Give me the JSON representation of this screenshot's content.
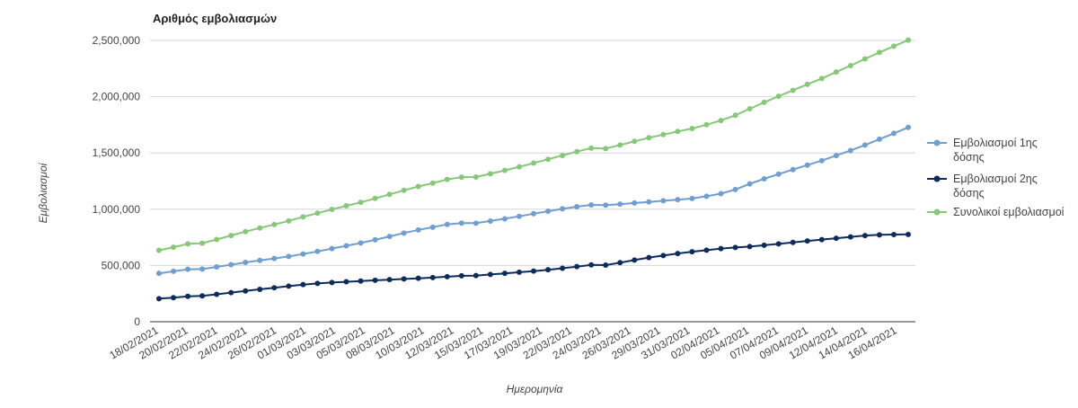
{
  "chart_data": {
    "type": "line",
    "title": "Αριθμός εμβολιασμών",
    "xlabel": "Ημερομηνία",
    "ylabel": "Εμβολιασμοί",
    "ylim": [
      0,
      2500000
    ],
    "yticks": [
      "0",
      "500,000",
      "1,000,000",
      "1,500,000",
      "2,000,000",
      "2,500,000"
    ],
    "grid": true,
    "legend_position": "right",
    "x_tick_labels": [
      "18/02/2021",
      "20/02/2021",
      "22/02/2021",
      "24/02/2021",
      "26/02/2021",
      "01/03/2021",
      "03/03/2021",
      "05/03/2021",
      "08/03/2021",
      "10/03/2021",
      "12/03/2021",
      "15/03/2021",
      "17/03/2021",
      "19/03/2021",
      "22/03/2021",
      "24/03/2021",
      "26/03/2021",
      "29/03/2021",
      "31/03/2021",
      "02/04/2021",
      "05/04/2021",
      "07/04/2021",
      "09/04/2021",
      "12/04/2021",
      "14/04/2021",
      "16/04/2021"
    ],
    "series": [
      {
        "name": "Εμβολιασμοί 1ης δόσης",
        "legend_lines": [
          "Εμβολιασμοί 1ης",
          "δόσης"
        ],
        "color": "#6f9fd1",
        "values": [
          430000,
          448000,
          466000,
          468000,
          487000,
          507000,
          527000,
          545000,
          562000,
          580000,
          602000,
          625000,
          650000,
          675000,
          700000,
          728000,
          758000,
          788000,
          816000,
          840000,
          865000,
          877000,
          876000,
          895000,
          915000,
          937000,
          960000,
          982000,
          1003000,
          1022000,
          1038000,
          1036000,
          1045000,
          1055000,
          1065000,
          1075000,
          1085000,
          1095000,
          1115000,
          1138000,
          1175000,
          1225000,
          1270000,
          1312000,
          1352000,
          1392000,
          1432000,
          1477000,
          1522000,
          1570000,
          1622000,
          1674000,
          1727000
        ]
      },
      {
        "name": "Εμβολιασμοί 2ης δόσης",
        "legend_lines": [
          "Εμβολιασμοί 2ης",
          "δόσης"
        ],
        "color": "#0d2c5c",
        "values": [
          205000,
          214000,
          226000,
          230000,
          244000,
          259000,
          274000,
          288000,
          302000,
          316000,
          330000,
          340000,
          348000,
          355000,
          361000,
          368000,
          374000,
          380000,
          386000,
          392000,
          400000,
          408000,
          410000,
          420000,
          430000,
          440000,
          450000,
          462000,
          475000,
          490000,
          505000,
          503000,
          525000,
          548000,
          570000,
          588000,
          606000,
          622000,
          636000,
          650000,
          660000,
          668000,
          680000,
          692000,
          705000,
          718000,
          730000,
          742000,
          754000,
          766000,
          772000,
          775000,
          776000
        ]
      },
      {
        "name": "Συνολικοί εμβολιασμοί",
        "legend_lines": [
          "Συνολικοί εμβολιασμοί"
        ],
        "color": "#86c876",
        "values": [
          635000,
          662000,
          692000,
          698000,
          731000,
          766000,
          801000,
          833000,
          864000,
          896000,
          932000,
          965000,
          998000,
          1030000,
          1061000,
          1096000,
          1132000,
          1168000,
          1202000,
          1232000,
          1265000,
          1285000,
          1286000,
          1315000,
          1345000,
          1377000,
          1410000,
          1444000,
          1478000,
          1512000,
          1543000,
          1539000,
          1570000,
          1603000,
          1635000,
          1663000,
          1691000,
          1717000,
          1751000,
          1788000,
          1835000,
          1893000,
          1950000,
          2004000,
          2057000,
          2110000,
          2162000,
          2219000,
          2276000,
          2336000,
          2394000,
          2449000,
          2503000
        ]
      }
    ]
  }
}
